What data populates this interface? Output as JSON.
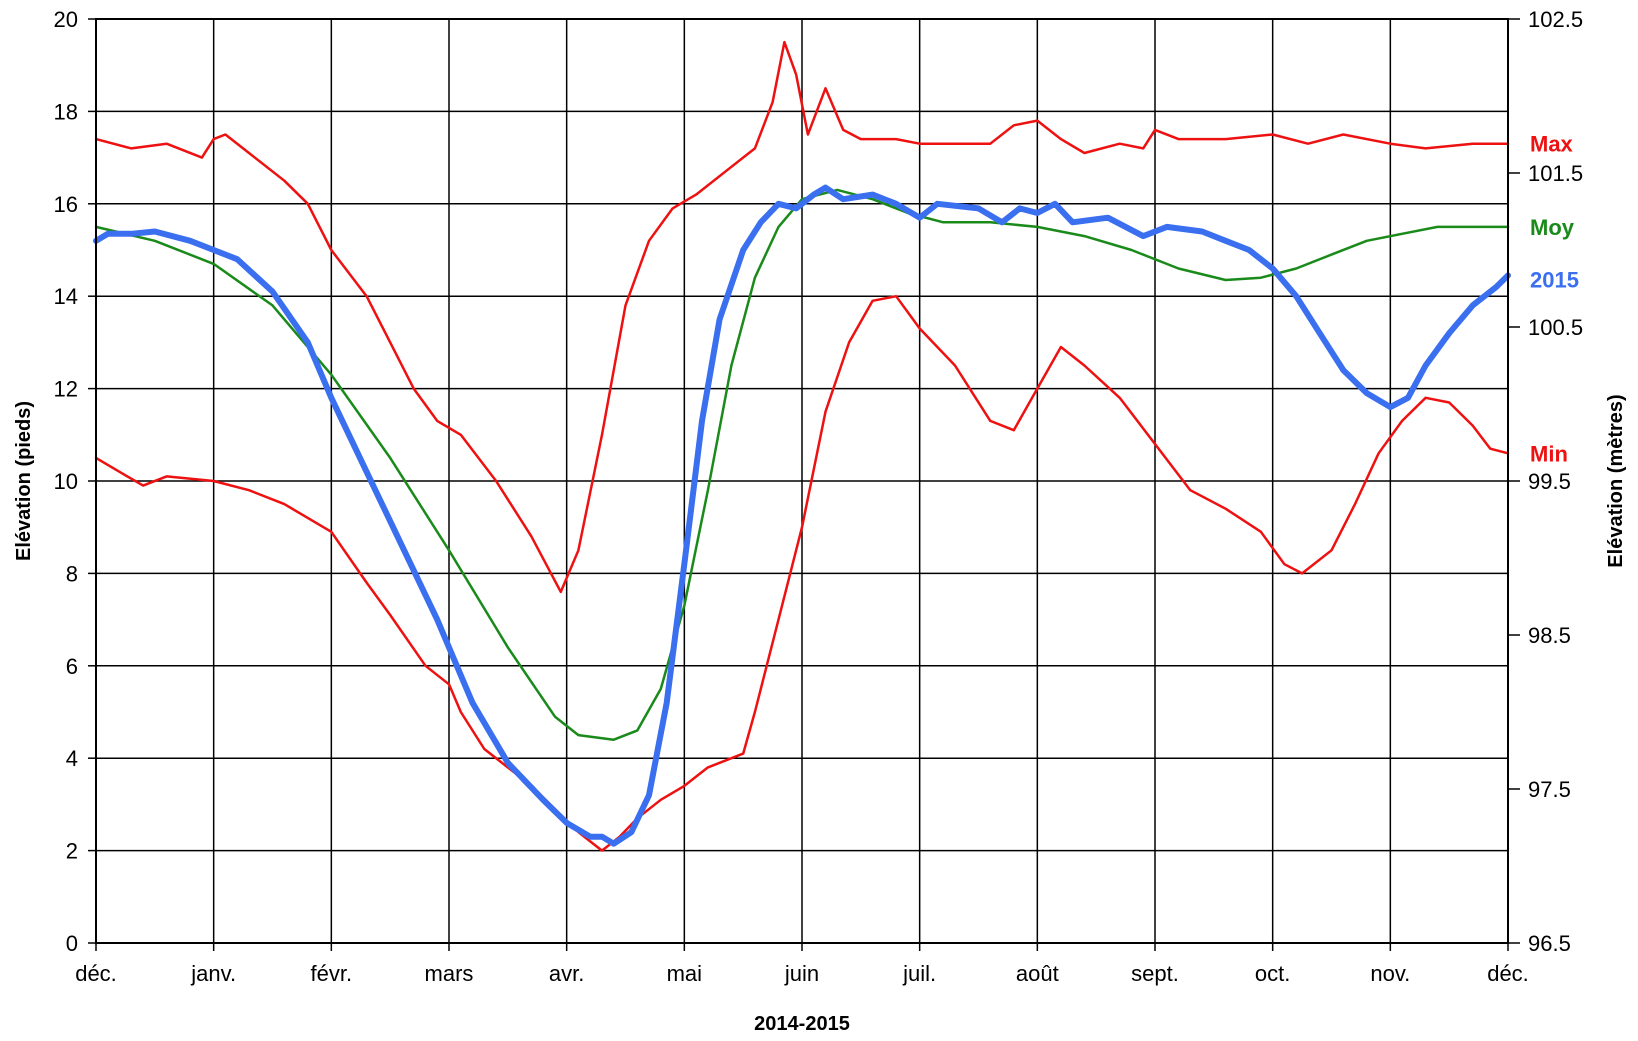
{
  "chart_data": {
    "type": "line",
    "xlabel": "2014-2015",
    "ylabel": "Elévation (pieds)",
    "ylabel_right": "Elévation (mètres)",
    "x_categories": [
      "déc.",
      "janv.",
      "févr.",
      "mars",
      "avr.",
      "mai",
      "juin",
      "juil.",
      "août",
      "sept.",
      "oct.",
      "nov.",
      "déc."
    ],
    "ylim": [
      0,
      20
    ],
    "yticks": [
      0,
      2,
      4,
      6,
      8,
      10,
      12,
      14,
      16,
      18,
      20
    ],
    "ylim_right": [
      96.5,
      102.5
    ],
    "yticks_right": [
      96.5,
      97.5,
      98.5,
      99.5,
      100.5,
      101.5,
      102.5
    ],
    "grid": true,
    "legend": "right-edge labels",
    "series": [
      {
        "name": "Max",
        "color": "#ee1111",
        "points": [
          [
            0,
            17.4
          ],
          [
            0.3,
            17.2
          ],
          [
            0.6,
            17.3
          ],
          [
            0.9,
            17.0
          ],
          [
            1.0,
            17.4
          ],
          [
            1.1,
            17.5
          ],
          [
            1.3,
            17.1
          ],
          [
            1.6,
            16.5
          ],
          [
            1.8,
            16.0
          ],
          [
            2.0,
            15.0
          ],
          [
            2.3,
            14.0
          ],
          [
            2.5,
            13.0
          ],
          [
            2.7,
            12.0
          ],
          [
            2.9,
            11.3
          ],
          [
            3.1,
            11.0
          ],
          [
            3.4,
            10.0
          ],
          [
            3.7,
            8.8
          ],
          [
            3.95,
            7.6
          ],
          [
            4.1,
            8.5
          ],
          [
            4.3,
            11.0
          ],
          [
            4.5,
            13.8
          ],
          [
            4.7,
            15.2
          ],
          [
            4.9,
            15.9
          ],
          [
            5.1,
            16.2
          ],
          [
            5.4,
            16.8
          ],
          [
            5.6,
            17.2
          ],
          [
            5.75,
            18.2
          ],
          [
            5.85,
            19.5
          ],
          [
            5.95,
            18.8
          ],
          [
            6.05,
            17.5
          ],
          [
            6.2,
            18.5
          ],
          [
            6.35,
            17.6
          ],
          [
            6.5,
            17.4
          ],
          [
            6.8,
            17.4
          ],
          [
            7.0,
            17.3
          ],
          [
            7.4,
            17.3
          ],
          [
            7.6,
            17.3
          ],
          [
            7.8,
            17.7
          ],
          [
            8.0,
            17.8
          ],
          [
            8.2,
            17.4
          ],
          [
            8.4,
            17.1
          ],
          [
            8.7,
            17.3
          ],
          [
            8.9,
            17.2
          ],
          [
            9.0,
            17.6
          ],
          [
            9.2,
            17.4
          ],
          [
            9.6,
            17.4
          ],
          [
            10.0,
            17.5
          ],
          [
            10.3,
            17.3
          ],
          [
            10.6,
            17.5
          ],
          [
            11.0,
            17.3
          ],
          [
            11.3,
            17.2
          ],
          [
            11.7,
            17.3
          ],
          [
            12.0,
            17.3
          ]
        ]
      },
      {
        "name": "Min",
        "color": "#ee1111",
        "points": [
          [
            0,
            10.5
          ],
          [
            0.2,
            10.2
          ],
          [
            0.4,
            9.9
          ],
          [
            0.6,
            10.1
          ],
          [
            1.0,
            10.0
          ],
          [
            1.3,
            9.8
          ],
          [
            1.6,
            9.5
          ],
          [
            2.0,
            8.9
          ],
          [
            2.3,
            7.8
          ],
          [
            2.5,
            7.1
          ],
          [
            2.8,
            6.0
          ],
          [
            3.0,
            5.6
          ],
          [
            3.1,
            5.0
          ],
          [
            3.3,
            4.2
          ],
          [
            3.5,
            3.8
          ],
          [
            3.7,
            3.4
          ],
          [
            3.9,
            2.9
          ],
          [
            4.1,
            2.4
          ],
          [
            4.3,
            2.0
          ],
          [
            4.45,
            2.3
          ],
          [
            4.6,
            2.7
          ],
          [
            4.8,
            3.1
          ],
          [
            5.0,
            3.4
          ],
          [
            5.2,
            3.8
          ],
          [
            5.4,
            4.0
          ],
          [
            5.5,
            4.1
          ],
          [
            5.6,
            5.0
          ],
          [
            5.8,
            7.0
          ],
          [
            6.0,
            9.0
          ],
          [
            6.2,
            11.5
          ],
          [
            6.4,
            13.0
          ],
          [
            6.6,
            13.9
          ],
          [
            6.8,
            14.0
          ],
          [
            7.0,
            13.3
          ],
          [
            7.3,
            12.5
          ],
          [
            7.6,
            11.3
          ],
          [
            7.8,
            11.1
          ],
          [
            8.0,
            12.0
          ],
          [
            8.2,
            12.9
          ],
          [
            8.4,
            12.5
          ],
          [
            8.7,
            11.8
          ],
          [
            9.0,
            10.8
          ],
          [
            9.3,
            9.8
          ],
          [
            9.6,
            9.4
          ],
          [
            9.9,
            8.9
          ],
          [
            10.1,
            8.2
          ],
          [
            10.25,
            8.0
          ],
          [
            10.5,
            8.5
          ],
          [
            10.7,
            9.5
          ],
          [
            10.9,
            10.6
          ],
          [
            11.1,
            11.3
          ],
          [
            11.3,
            11.8
          ],
          [
            11.5,
            11.7
          ],
          [
            11.7,
            11.2
          ],
          [
            11.85,
            10.7
          ],
          [
            12.0,
            10.6
          ]
        ]
      },
      {
        "name": "Moy",
        "color": "#1a8a1a",
        "points": [
          [
            0,
            15.5
          ],
          [
            0.5,
            15.2
          ],
          [
            1.0,
            14.7
          ],
          [
            1.5,
            13.8
          ],
          [
            2.0,
            12.3
          ],
          [
            2.5,
            10.5
          ],
          [
            3.0,
            8.5
          ],
          [
            3.5,
            6.4
          ],
          [
            3.9,
            4.9
          ],
          [
            4.1,
            4.5
          ],
          [
            4.4,
            4.4
          ],
          [
            4.6,
            4.6
          ],
          [
            4.8,
            5.5
          ],
          [
            5.0,
            7.3
          ],
          [
            5.2,
            9.8
          ],
          [
            5.4,
            12.5
          ],
          [
            5.6,
            14.4
          ],
          [
            5.8,
            15.5
          ],
          [
            6.0,
            16.1
          ],
          [
            6.3,
            16.3
          ],
          [
            6.6,
            16.1
          ],
          [
            6.9,
            15.8
          ],
          [
            7.2,
            15.6
          ],
          [
            7.6,
            15.6
          ],
          [
            8.0,
            15.5
          ],
          [
            8.4,
            15.3
          ],
          [
            8.8,
            15.0
          ],
          [
            9.2,
            14.6
          ],
          [
            9.6,
            14.35
          ],
          [
            9.9,
            14.4
          ],
          [
            10.2,
            14.6
          ],
          [
            10.5,
            14.9
          ],
          [
            10.8,
            15.2
          ],
          [
            11.1,
            15.35
          ],
          [
            11.4,
            15.5
          ],
          [
            11.7,
            15.5
          ],
          [
            12.0,
            15.5
          ]
        ]
      },
      {
        "name": "2015",
        "color": "#3a6ff0",
        "points": [
          [
            0,
            15.2
          ],
          [
            0.1,
            15.35
          ],
          [
            0.3,
            15.35
          ],
          [
            0.5,
            15.4
          ],
          [
            0.8,
            15.2
          ],
          [
            1.0,
            15.0
          ],
          [
            1.2,
            14.8
          ],
          [
            1.5,
            14.1
          ],
          [
            1.8,
            13.0
          ],
          [
            2.0,
            11.8
          ],
          [
            2.3,
            10.2
          ],
          [
            2.6,
            8.6
          ],
          [
            2.9,
            7.0
          ],
          [
            3.2,
            5.2
          ],
          [
            3.5,
            3.9
          ],
          [
            3.8,
            3.1
          ],
          [
            4.0,
            2.6
          ],
          [
            4.2,
            2.3
          ],
          [
            4.3,
            2.3
          ],
          [
            4.4,
            2.15
          ],
          [
            4.55,
            2.4
          ],
          [
            4.7,
            3.2
          ],
          [
            4.85,
            5.2
          ],
          [
            5.0,
            8.2
          ],
          [
            5.15,
            11.3
          ],
          [
            5.3,
            13.5
          ],
          [
            5.5,
            15.0
          ],
          [
            5.65,
            15.6
          ],
          [
            5.8,
            16.0
          ],
          [
            5.95,
            15.9
          ],
          [
            6.1,
            16.2
          ],
          [
            6.2,
            16.35
          ],
          [
            6.35,
            16.1
          ],
          [
            6.6,
            16.2
          ],
          [
            6.8,
            16.0
          ],
          [
            7.0,
            15.7
          ],
          [
            7.15,
            16.0
          ],
          [
            7.5,
            15.9
          ],
          [
            7.7,
            15.6
          ],
          [
            7.85,
            15.9
          ],
          [
            8.0,
            15.8
          ],
          [
            8.15,
            16.0
          ],
          [
            8.3,
            15.6
          ],
          [
            8.6,
            15.7
          ],
          [
            8.9,
            15.3
          ],
          [
            9.1,
            15.5
          ],
          [
            9.4,
            15.4
          ],
          [
            9.6,
            15.2
          ],
          [
            9.8,
            15.0
          ],
          [
            10.0,
            14.6
          ],
          [
            10.2,
            14.0
          ],
          [
            10.4,
            13.2
          ],
          [
            10.6,
            12.4
          ],
          [
            10.8,
            11.9
          ],
          [
            11.0,
            11.6
          ],
          [
            11.15,
            11.8
          ],
          [
            11.3,
            12.5
          ],
          [
            11.5,
            13.2
          ],
          [
            11.7,
            13.8
          ],
          [
            11.9,
            14.2
          ],
          [
            12.0,
            14.45
          ]
        ]
      }
    ]
  }
}
